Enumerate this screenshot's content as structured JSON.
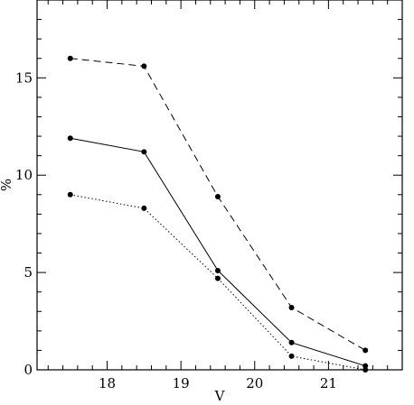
{
  "chart_data": {
    "type": "line",
    "xlabel": "V",
    "ylabel": "%",
    "xlim": [
      17.05,
      22.0
    ],
    "ylim": [
      0,
      19
    ],
    "x_ticks": [
      18,
      19,
      20,
      21
    ],
    "y_ticks": [
      0,
      5,
      10,
      15
    ],
    "series": [
      {
        "style": "dashed",
        "x": [
          17.5,
          18.5,
          19.5,
          20.5,
          21.5
        ],
        "y": [
          16.0,
          15.6,
          8.9,
          3.2,
          1.0
        ]
      },
      {
        "style": "solid",
        "x": [
          17.5,
          18.5,
          19.5,
          20.5,
          21.5
        ],
        "y": [
          11.9,
          11.2,
          5.1,
          1.4,
          0.2
        ]
      },
      {
        "style": "dotted",
        "x": [
          17.5,
          18.5,
          19.5,
          20.5,
          21.5
        ],
        "y": [
          9.0,
          8.3,
          4.7,
          0.7,
          0.0
        ]
      }
    ]
  }
}
